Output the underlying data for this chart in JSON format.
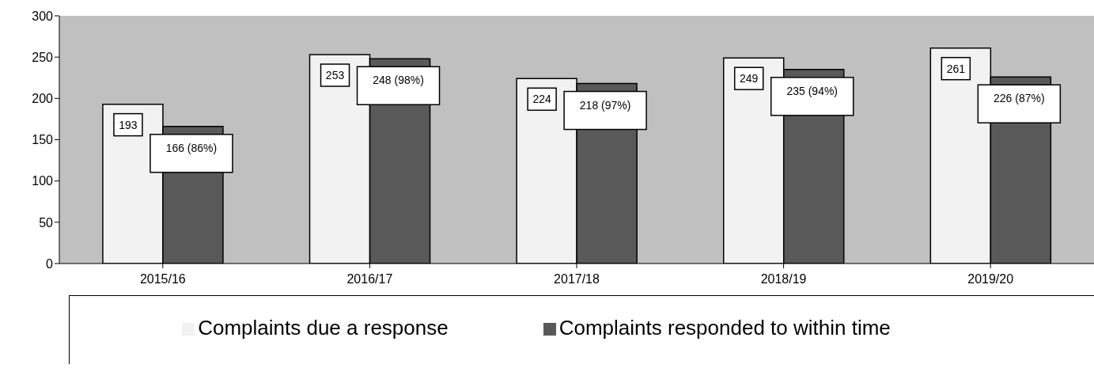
{
  "chart_data": {
    "type": "bar",
    "categories": [
      "2015/16",
      "2016/17",
      "2017/18",
      "2018/19",
      "2019/20"
    ],
    "series": [
      {
        "name": "Complaints due a response",
        "color": "#f2f2f2",
        "values": [
          193,
          253,
          224,
          249,
          261
        ],
        "value_labels": [
          "193",
          "253",
          "224",
          "249",
          "261"
        ]
      },
      {
        "name": "Complaints responded to within time",
        "color": "#595959",
        "values": [
          166,
          248,
          218,
          235,
          226
        ],
        "value_labels": [
          "166 (86%)",
          "248 (98%)",
          "218 (97%)",
          "235 (94%)",
          "226 (87%)"
        ]
      }
    ],
    "ylim": [
      0,
      300
    ],
    "yticks": [
      0,
      50,
      100,
      150,
      200,
      250,
      300
    ],
    "grid": false,
    "legend": "bottom"
  }
}
